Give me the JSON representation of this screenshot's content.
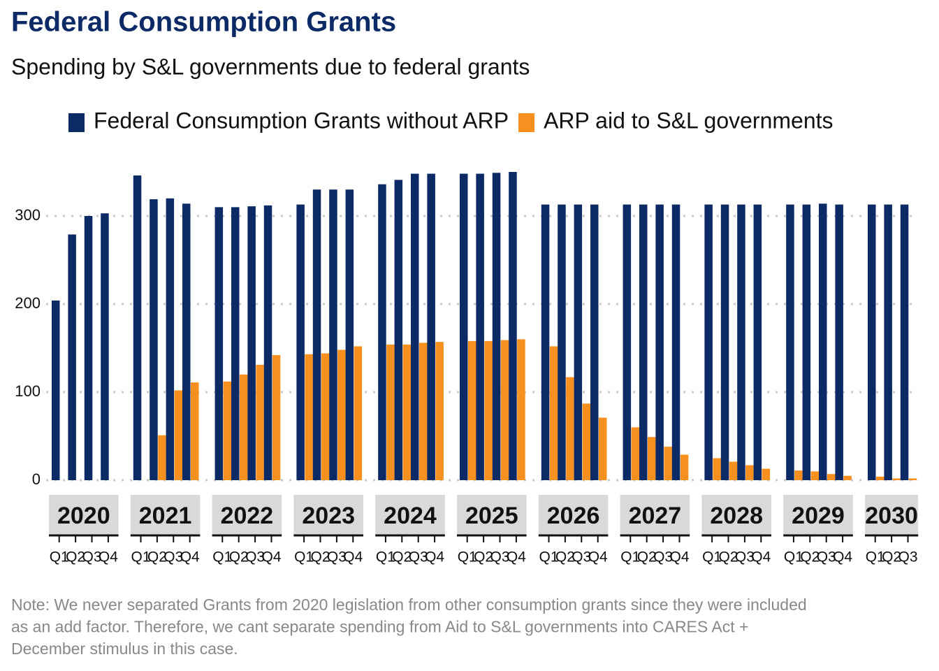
{
  "chart_data": {
    "type": "bar",
    "title": "Federal Consumption Grants",
    "subtitle": "Spending by S&L governments due to federal grants",
    "note": [
      "Note: We never separated Grants from 2020 legislation from other consumption grants since they were included",
      "as an add factor. Therefore, we cant separate spending from Aid to S&L governments into CARES Act +",
      "December stimulus in this case."
    ],
    "series": [
      {
        "name": "Federal Consumption Grants without ARP",
        "color": "#0b2a66"
      },
      {
        "name": "ARP aid to S&L governments",
        "color": "#f7901e"
      }
    ],
    "ylim": [
      0,
      350
    ],
    "yticks": [
      0,
      100,
      200,
      300
    ],
    "grid": true,
    "panels": [
      {
        "label": "2020",
        "categories": [
          "Q1",
          "Q2",
          "Q3",
          "Q4"
        ],
        "series": [
          {
            "values": [
              204,
              279,
              300,
              303
            ]
          },
          {
            "values": [
              null,
              null,
              null,
              null
            ]
          }
        ]
      },
      {
        "label": "2021",
        "categories": [
          "Q1",
          "Q2",
          "Q3",
          "Q4"
        ],
        "series": [
          {
            "values": [
              346,
              319,
              320,
              314
            ]
          },
          {
            "values": [
              null,
              51,
              102,
              111
            ]
          }
        ]
      },
      {
        "label": "2022",
        "categories": [
          "Q1",
          "Q2",
          "Q3",
          "Q4"
        ],
        "series": [
          {
            "values": [
              310,
              310,
              311,
              312
            ]
          },
          {
            "values": [
              112,
              120,
              131,
              142
            ]
          }
        ]
      },
      {
        "label": "2023",
        "categories": [
          "Q1",
          "Q2",
          "Q3",
          "Q4"
        ],
        "series": [
          {
            "values": [
              313,
              330,
              330,
              330
            ]
          },
          {
            "values": [
              143,
              144,
              148,
              152
            ]
          }
        ]
      },
      {
        "label": "2024",
        "categories": [
          "Q1",
          "Q2",
          "Q3",
          "Q4"
        ],
        "series": [
          {
            "values": [
              336,
              341,
              348,
              348
            ]
          },
          {
            "values": [
              154,
              154,
              156,
              157
            ]
          }
        ]
      },
      {
        "label": "2025",
        "categories": [
          "Q1",
          "Q2",
          "Q3",
          "Q4"
        ],
        "series": [
          {
            "values": [
              348,
              348,
              349,
              350
            ]
          },
          {
            "values": [
              158,
              158,
              159,
              160
            ]
          }
        ]
      },
      {
        "label": "2026",
        "categories": [
          "Q1",
          "Q2",
          "Q3",
          "Q4"
        ],
        "series": [
          {
            "values": [
              313,
              313,
              313,
              313
            ]
          },
          {
            "values": [
              152,
              117,
              87,
              71
            ]
          }
        ]
      },
      {
        "label": "2027",
        "categories": [
          "Q1",
          "Q2",
          "Q3",
          "Q4"
        ],
        "series": [
          {
            "values": [
              313,
              313,
              313,
              313
            ]
          },
          {
            "values": [
              60,
              49,
              38,
              29
            ]
          }
        ]
      },
      {
        "label": "2028",
        "categories": [
          "Q1",
          "Q2",
          "Q3",
          "Q4"
        ],
        "series": [
          {
            "values": [
              313,
              313,
              313,
              313
            ]
          },
          {
            "values": [
              25,
              21,
              17,
              13
            ]
          }
        ]
      },
      {
        "label": "2029",
        "categories": [
          "Q1",
          "Q2",
          "Q3",
          "Q4"
        ],
        "series": [
          {
            "values": [
              313,
              313,
              314,
              313
            ]
          },
          {
            "values": [
              11,
              10,
              7,
              5
            ]
          }
        ]
      },
      {
        "label": "2030",
        "categories": [
          "Q1",
          "Q2",
          "Q3"
        ],
        "series": [
          {
            "values": [
              313,
              313,
              313
            ]
          },
          {
            "values": [
              4,
              2,
              2
            ]
          }
        ]
      }
    ]
  }
}
